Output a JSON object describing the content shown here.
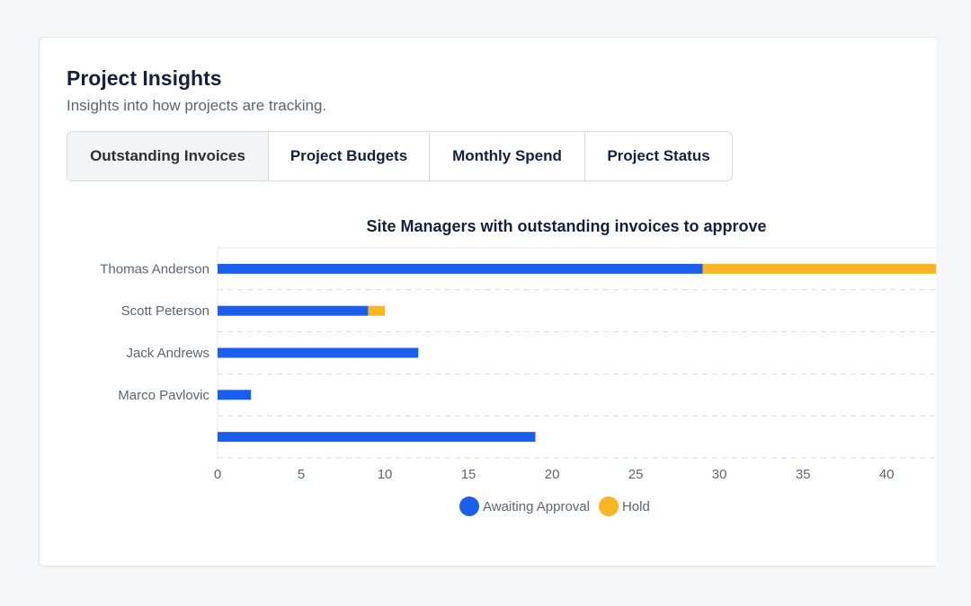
{
  "header": {
    "title": "Project Insights",
    "subtitle": "Insights into how projects are tracking."
  },
  "tabs": [
    {
      "label": "Outstanding Invoices",
      "active": true
    },
    {
      "label": "Project Budgets",
      "active": false
    },
    {
      "label": "Monthly Spend",
      "active": false
    },
    {
      "label": "Project Status",
      "active": false
    }
  ],
  "colors": {
    "awaiting": "#1a5ef0",
    "hold": "#fbb520",
    "grid": "#d9dde3",
    "axis_text": "#5b6574",
    "title_text": "#14213d"
  },
  "chart_data": {
    "type": "bar",
    "orientation": "horizontal",
    "stacked": true,
    "title": "Site Managers with outstanding invoices to approve",
    "categories": [
      "Thomas Anderson",
      "Scott Peterson",
      "Jack Andrews",
      "Marco Pavlovic",
      ""
    ],
    "series": [
      {
        "name": "Awaiting Approval",
        "values": [
          29,
          9,
          12,
          2,
          19
        ]
      },
      {
        "name": "Hold",
        "values": [
          14,
          1,
          0,
          0,
          0
        ]
      }
    ],
    "xlim": [
      0,
      43
    ],
    "xticks": [
      0,
      5,
      10,
      15,
      20,
      25,
      30,
      35,
      40
    ],
    "grid": true,
    "legend": "bottom-center"
  }
}
